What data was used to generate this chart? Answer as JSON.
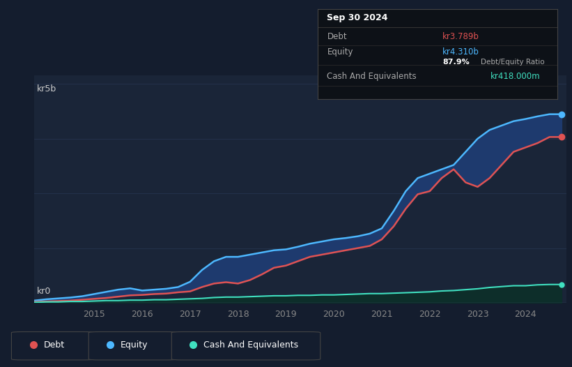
{
  "background_color": "#141d2e",
  "plot_bg_color": "#1a2538",
  "title": "Sep 30 2024",
  "ylabel_top": "kr5b",
  "ylabel_bottom": "kr0",
  "debt_color": "#e05252",
  "equity_color": "#4db8ff",
  "cash_color": "#40e0c0",
  "info_box_bg": "#0d1117",
  "info_box_border": "#444444",
  "debt_value_color": "#e05252",
  "equity_value_color": "#4db8ff",
  "cash_value_color": "#40e0c0",
  "grid_color": "#263550",
  "fill_equity_debt_color": "#1e3a6e",
  "fill_debt_equity_color": "#5a1a2a",
  "fill_cash_color": "#0d2e2a",
  "time": [
    2013.75,
    2014.0,
    2014.25,
    2014.5,
    2014.75,
    2015.0,
    2015.25,
    2015.5,
    2015.75,
    2016.0,
    2016.25,
    2016.5,
    2016.75,
    2017.0,
    2017.25,
    2017.5,
    2017.75,
    2018.0,
    2018.25,
    2018.5,
    2018.75,
    2019.0,
    2019.25,
    2019.5,
    2019.75,
    2020.0,
    2020.25,
    2020.5,
    2020.75,
    2021.0,
    2021.25,
    2021.5,
    2021.75,
    2022.0,
    2022.25,
    2022.5,
    2022.75,
    2023.0,
    2023.25,
    2023.5,
    2023.75,
    2024.0,
    2024.25,
    2024.5,
    2024.75
  ],
  "equity": [
    0.05,
    0.08,
    0.1,
    0.12,
    0.15,
    0.2,
    0.25,
    0.3,
    0.33,
    0.28,
    0.3,
    0.32,
    0.36,
    0.48,
    0.75,
    0.95,
    1.05,
    1.05,
    1.1,
    1.15,
    1.2,
    1.22,
    1.28,
    1.35,
    1.4,
    1.45,
    1.48,
    1.52,
    1.58,
    1.7,
    2.1,
    2.55,
    2.85,
    2.95,
    3.05,
    3.15,
    3.45,
    3.75,
    3.95,
    4.05,
    4.15,
    4.2,
    4.26,
    4.31,
    4.31
  ],
  "debt": [
    0.02,
    0.03,
    0.04,
    0.05,
    0.07,
    0.09,
    0.11,
    0.14,
    0.17,
    0.18,
    0.2,
    0.21,
    0.24,
    0.26,
    0.36,
    0.44,
    0.47,
    0.44,
    0.52,
    0.65,
    0.8,
    0.85,
    0.95,
    1.05,
    1.1,
    1.15,
    1.2,
    1.25,
    1.3,
    1.45,
    1.75,
    2.15,
    2.48,
    2.55,
    2.85,
    3.05,
    2.75,
    2.65,
    2.85,
    3.15,
    3.45,
    3.55,
    3.65,
    3.789,
    3.789
  ],
  "cash": [
    0.01,
    0.02,
    0.02,
    0.03,
    0.03,
    0.04,
    0.05,
    0.05,
    0.06,
    0.06,
    0.07,
    0.07,
    0.08,
    0.09,
    0.1,
    0.12,
    0.13,
    0.13,
    0.14,
    0.15,
    0.16,
    0.16,
    0.17,
    0.17,
    0.18,
    0.18,
    0.19,
    0.2,
    0.21,
    0.21,
    0.22,
    0.23,
    0.24,
    0.25,
    0.27,
    0.28,
    0.3,
    0.32,
    0.35,
    0.37,
    0.39,
    0.39,
    0.41,
    0.418,
    0.418
  ],
  "xlim": [
    2013.75,
    2024.85
  ],
  "ylim": [
    0,
    5.2
  ],
  "tick_years": [
    2015,
    2016,
    2017,
    2018,
    2019,
    2020,
    2021,
    2022,
    2023,
    2024
  ]
}
